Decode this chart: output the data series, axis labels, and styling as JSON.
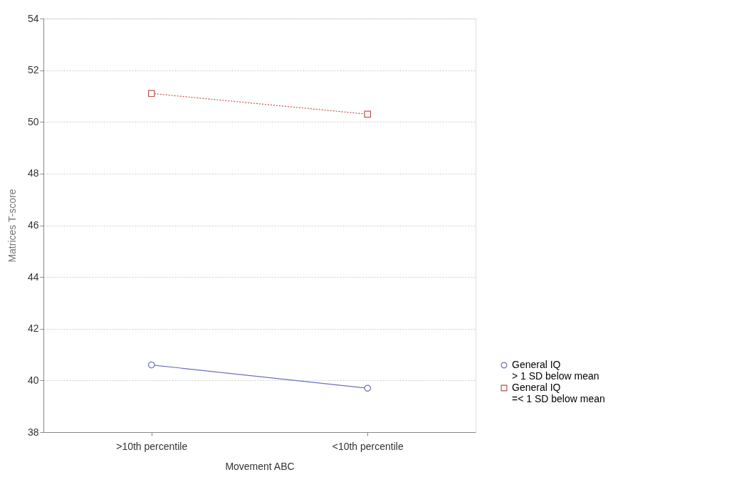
{
  "chart_data": {
    "type": "line",
    "xlabel": "Movement ABC",
    "ylabel": "Matrices T-score",
    "categories": [
      ">10th percentile",
      "<10th percentile"
    ],
    "series": [
      {
        "name": "General IQ\n> 1 SD below mean",
        "color": "#6a6fc0",
        "values": [
          40.6,
          39.7
        ],
        "marker": "circle",
        "line_style": "solid"
      },
      {
        "name": "General IQ\n=< 1 SD below mean",
        "color": "#c0504d",
        "values": [
          51.1,
          50.3
        ],
        "marker": "square",
        "line_style": "dotted"
      }
    ],
    "ylim": [
      38,
      54
    ],
    "yticks": [
      38,
      40,
      42,
      44,
      46,
      48,
      50,
      52,
      54
    ],
    "grid": "y",
    "legend": "bottom right"
  }
}
